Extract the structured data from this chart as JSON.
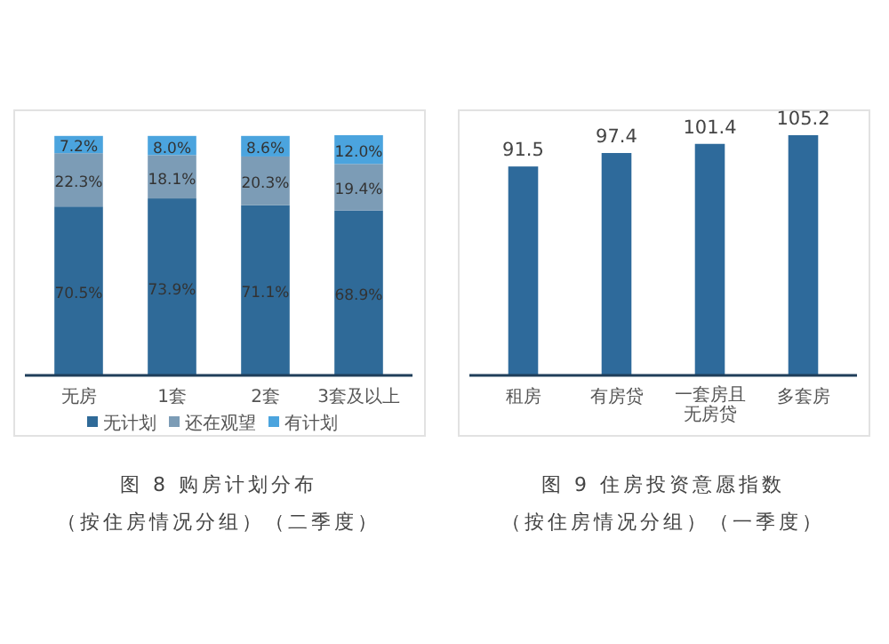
{
  "chart_data": [
    {
      "type": "bar",
      "title": "图 8 购房计划分布",
      "subtitle": "（按住房情况分组）（二季度）",
      "categories": [
        "无房",
        "1套",
        "2套",
        "3套及以上"
      ],
      "stacked": true,
      "ylim": [
        0,
        100.3
      ],
      "legend": "bottom",
      "tick_labels": "x",
      "series": [
        {
          "name": "无计划",
          "color": "#2f6a98",
          "values": [
            70.5,
            73.9,
            71.1,
            68.9
          ],
          "value_labels": [
            "70.5%",
            "73.9%",
            "71.1%",
            "68.9%"
          ]
        },
        {
          "name": "还在观望",
          "color": "#7c9cb6",
          "values": [
            22.3,
            18.1,
            20.3,
            19.4
          ],
          "value_labels": [
            "22.3%",
            "18.1%",
            "20.3%",
            "19.4%"
          ]
        },
        {
          "name": "有计划",
          "color": "#4ba4de",
          "values": [
            7.2,
            8.0,
            8.6,
            12.0
          ],
          "value_labels": [
            "7.2%",
            "8.0%",
            "8.6%",
            "12.0%"
          ]
        }
      ]
    },
    {
      "type": "bar",
      "title": "图 9 住房投资意愿指数",
      "subtitle": "（按住房情况分组）（一季度）",
      "categories": [
        "租房",
        "有房贷",
        "一套房且无房贷",
        "多套房"
      ],
      "values": [
        91.5,
        97.4,
        101.4,
        105.2
      ],
      "color": "#2e6a9b",
      "data_labels": true,
      "tick_labels": "x"
    }
  ]
}
